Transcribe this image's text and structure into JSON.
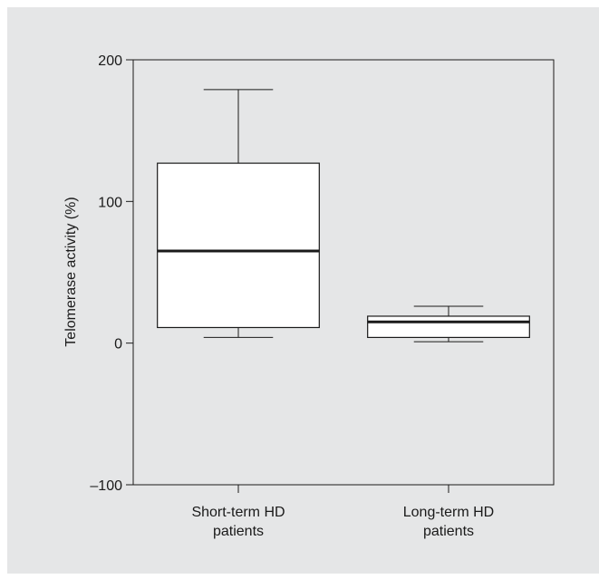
{
  "chart_data": {
    "type": "box",
    "ylabel": "Telomerase activity (%)",
    "xlabel": "",
    "ylim": [
      -100,
      200
    ],
    "yticks": [
      200,
      100,
      0,
      -100
    ],
    "ytick_labels": [
      "200",
      "100",
      "0",
      "–100"
    ],
    "categories": [
      {
        "name": "Short-term HD patients",
        "label_lines": [
          "Short-term HD",
          "patients"
        ]
      },
      {
        "name": "Long-term HD patients",
        "label_lines": [
          "Long-term HD",
          "patients"
        ]
      }
    ],
    "boxes": [
      {
        "category": "Short-term HD patients",
        "whisker_low": 4,
        "q1": 11,
        "median": 65,
        "q3": 127,
        "whisker_high": 179
      },
      {
        "category": "Long-term HD patients",
        "whisker_low": 1,
        "q1": 4,
        "median": 15,
        "q3": 19,
        "whisker_high": 26
      }
    ],
    "grid": false,
    "colors": {
      "box_fill": "#ffffff",
      "line": "#1a1a1a",
      "background": "#e5e6e7"
    }
  }
}
